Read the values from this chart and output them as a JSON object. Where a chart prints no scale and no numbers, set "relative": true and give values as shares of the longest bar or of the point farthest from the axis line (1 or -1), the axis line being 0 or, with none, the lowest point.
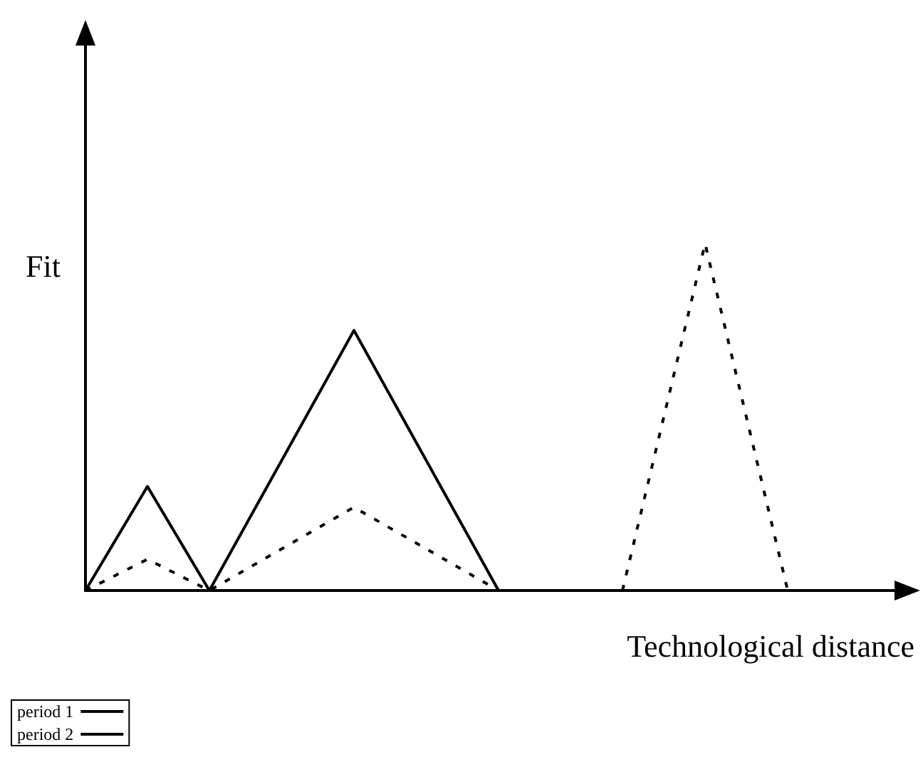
{
  "chart_data": {
    "type": "line",
    "xlabel": "Technological distance",
    "ylabel": "Fit",
    "relative": true,
    "categories": [
      null,
      null,
      null,
      null,
      null,
      null,
      null,
      null,
      null,
      null,
      null,
      null,
      null,
      null,
      null,
      null,
      null,
      null,
      null,
      null,
      null,
      null,
      null,
      null,
      null,
      null,
      null,
      null,
      null,
      null,
      null,
      null,
      null,
      null,
      null,
      null,
      null,
      null,
      null,
      null,
      null
    ],
    "series": [
      {
        "name": "period 1",
        "color": "#000000",
        "line_style": "solid",
        "values": [
          0,
          null,
          null,
          0.3,
          null,
          null,
          0,
          null,
          null,
          null,
          null,
          null,
          null,
          0.75,
          null,
          null,
          null,
          null,
          null,
          null,
          0,
          null,
          null,
          null,
          null,
          null,
          null,
          null,
          null,
          null,
          null,
          null,
          null,
          null,
          null,
          null,
          null,
          null,
          null,
          null,
          null
        ]
      },
      {
        "name": "period 2",
        "color": "#000000",
        "line_style": "dashed",
        "values": [
          0,
          null,
          null,
          0.09,
          null,
          null,
          0,
          null,
          null,
          null,
          null,
          null,
          null,
          0.24,
          null,
          null,
          null,
          null,
          null,
          null,
          0,
          null,
          null,
          null,
          null,
          null,
          null,
          null,
          null,
          null,
          null,
          null,
          null,
          null,
          null,
          null,
          null,
          null,
          null,
          null,
          null
        ]
      },
      {
        "color": "#000000",
        "line_style": "dashed",
        "values": [
          null,
          null,
          null,
          null,
          null,
          null,
          null,
          null,
          null,
          null,
          null,
          null,
          null,
          null,
          null,
          null,
          null,
          null,
          null,
          null,
          null,
          null,
          null,
          null,
          null,
          null,
          0,
          null,
          null,
          null,
          1,
          null,
          null,
          null,
          0,
          null,
          null,
          null,
          null,
          null,
          null
        ]
      }
    ],
    "marker": "none",
    "grid": false,
    "legend": "bottom left"
  }
}
